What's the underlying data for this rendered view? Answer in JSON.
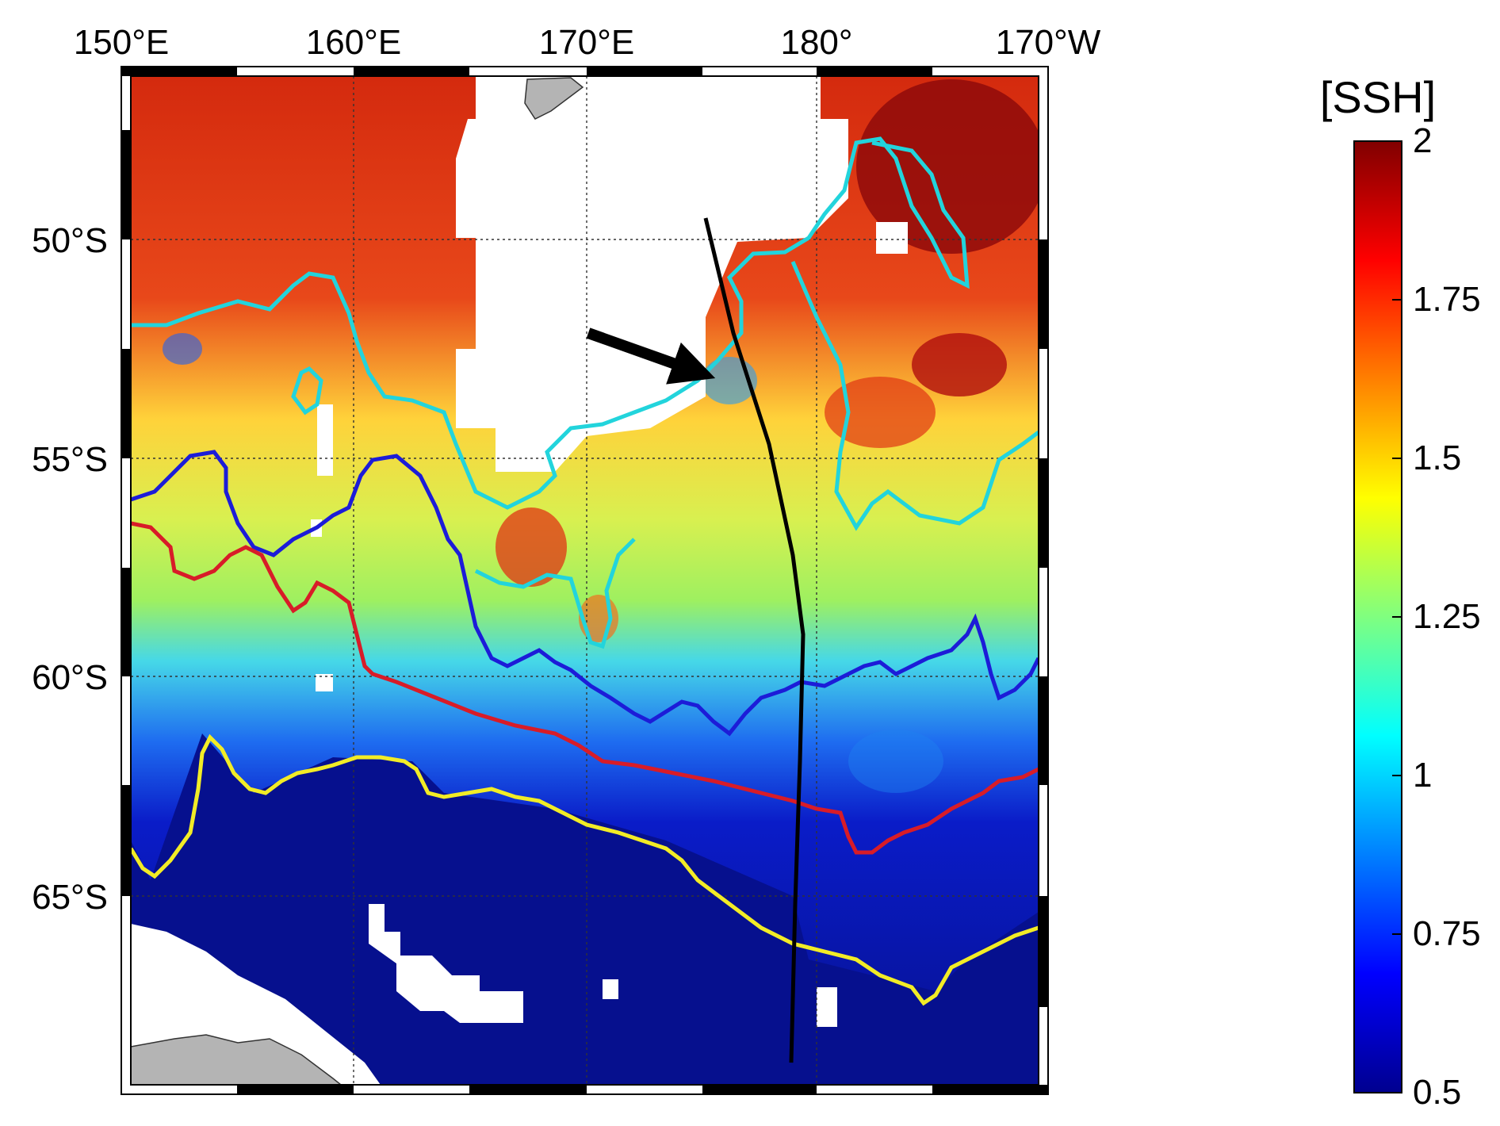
{
  "map": {
    "top_axis_labels": [
      "150°E",
      "160°E",
      "170°E",
      "180°",
      "170°W"
    ],
    "left_axis_labels": [
      "50°S",
      "55°S",
      "60°S",
      "65°S"
    ]
  },
  "colorbar": {
    "title": "[SSH]",
    "tick_labels": [
      "2",
      "1.75",
      "1.5",
      "1.25",
      "1",
      "0.75",
      "0.5"
    ],
    "ticks": [
      2,
      1.75,
      1.5,
      1.25,
      1,
      0.75,
      0.5
    ],
    "range": [
      0.5,
      2
    ],
    "colormap": "jet"
  },
  "colors": {
    "front_cyan": "#22d4dc",
    "front_blue": "#1c1cd8",
    "front_red": "#d81c28",
    "front_yellow": "#f2ec26",
    "transect": "#000000",
    "land": "#b4b4b4",
    "no_data": "#ffffff"
  }
}
